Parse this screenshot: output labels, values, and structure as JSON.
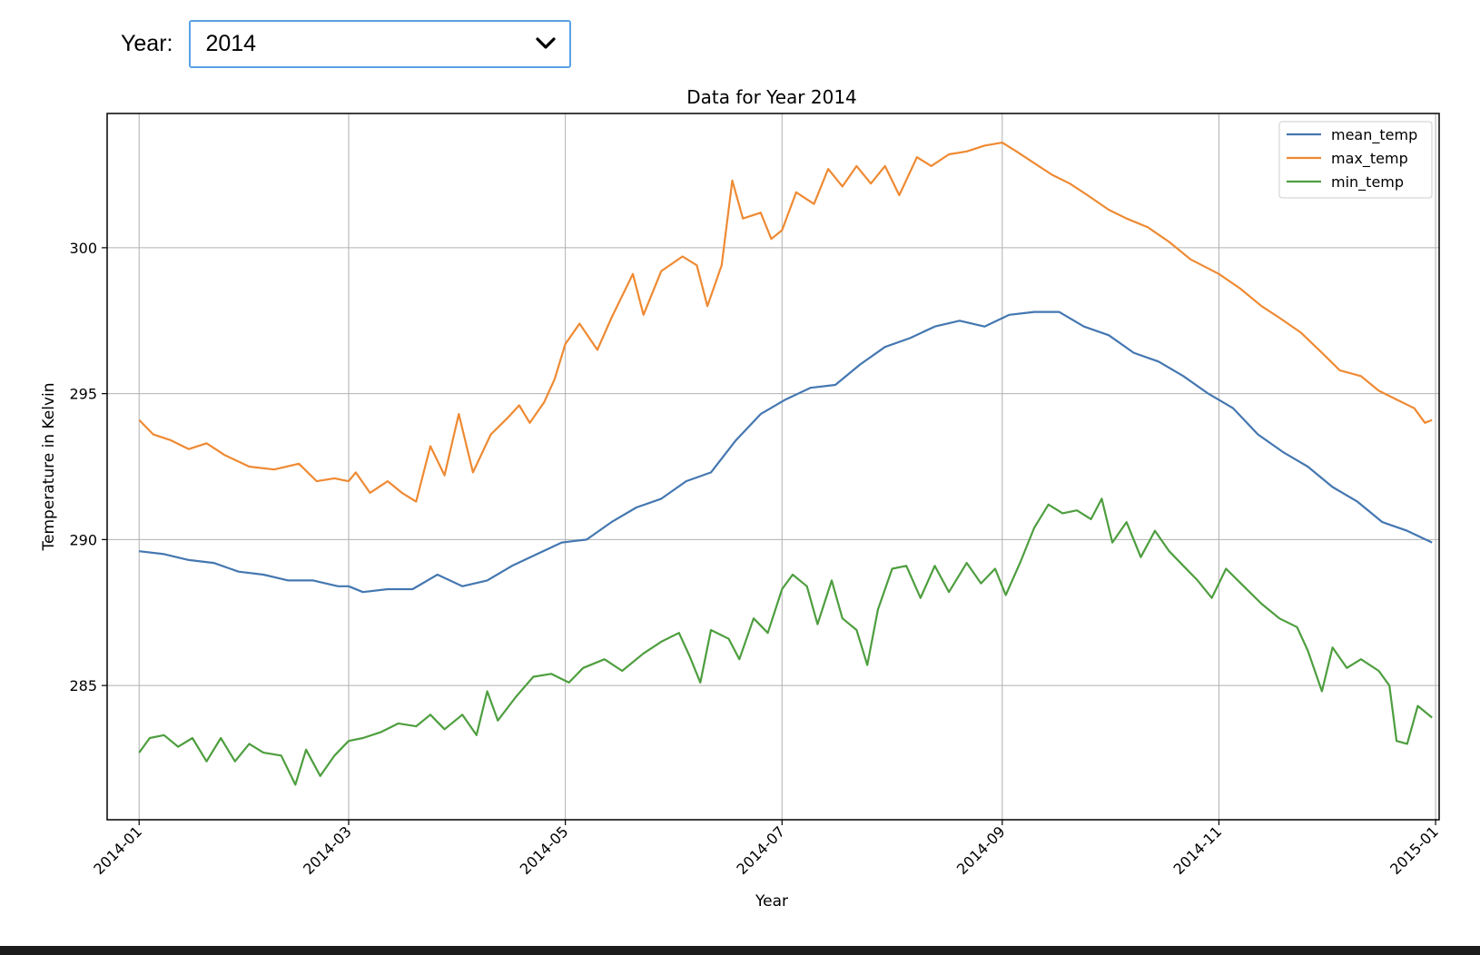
{
  "controls": {
    "year_label": "Year:",
    "year_selected": "2014"
  },
  "chart_data": {
    "type": "line",
    "title": "Data for Year 2014",
    "xlabel": "Year",
    "ylabel": "Temperature in Kelvin",
    "x_range": [
      "2013-12-23",
      "2015-01-02"
    ],
    "ylim": [
      280.4,
      304.6
    ],
    "x_ticks": [
      "2014-01",
      "2014-03",
      "2014-05",
      "2014-07",
      "2014-09",
      "2014-11",
      "2015-01"
    ],
    "y_ticks": [
      285,
      290,
      295,
      300
    ],
    "grid": true,
    "legend_position": "top-right",
    "series": [
      {
        "name": "mean_temp",
        "color": "#4477b0",
        "points": [
          [
            "2014-01-01",
            289.6
          ],
          [
            "2014-01-08",
            289.5
          ],
          [
            "2014-01-15",
            289.3
          ],
          [
            "2014-01-22",
            289.2
          ],
          [
            "2014-01-29",
            288.9
          ],
          [
            "2014-02-05",
            288.8
          ],
          [
            "2014-02-12",
            288.6
          ],
          [
            "2014-02-19",
            288.6
          ],
          [
            "2014-02-26",
            288.4
          ],
          [
            "2014-03-01",
            288.4
          ],
          [
            "2014-03-05",
            288.2
          ],
          [
            "2014-03-12",
            288.3
          ],
          [
            "2014-03-19",
            288.3
          ],
          [
            "2014-03-26",
            288.8
          ],
          [
            "2014-04-02",
            288.4
          ],
          [
            "2014-04-09",
            288.6
          ],
          [
            "2014-04-16",
            289.1
          ],
          [
            "2014-04-23",
            289.5
          ],
          [
            "2014-04-30",
            289.9
          ],
          [
            "2014-05-07",
            290.0
          ],
          [
            "2014-05-14",
            290.6
          ],
          [
            "2014-05-21",
            291.1
          ],
          [
            "2014-05-28",
            291.4
          ],
          [
            "2014-06-04",
            292.0
          ],
          [
            "2014-06-11",
            292.3
          ],
          [
            "2014-06-18",
            293.4
          ],
          [
            "2014-06-25",
            294.3
          ],
          [
            "2014-07-02",
            294.8
          ],
          [
            "2014-07-09",
            295.2
          ],
          [
            "2014-07-16",
            295.3
          ],
          [
            "2014-07-23",
            296.0
          ],
          [
            "2014-07-30",
            296.6
          ],
          [
            "2014-08-06",
            296.9
          ],
          [
            "2014-08-13",
            297.3
          ],
          [
            "2014-08-20",
            297.5
          ],
          [
            "2014-08-27",
            297.3
          ],
          [
            "2014-09-03",
            297.7
          ],
          [
            "2014-09-10",
            297.8
          ],
          [
            "2014-09-17",
            297.8
          ],
          [
            "2014-09-24",
            297.3
          ],
          [
            "2014-10-01",
            297.0
          ],
          [
            "2014-10-08",
            296.4
          ],
          [
            "2014-10-15",
            296.1
          ],
          [
            "2014-10-22",
            295.6
          ],
          [
            "2014-10-29",
            295.0
          ],
          [
            "2014-11-05",
            294.5
          ],
          [
            "2014-11-12",
            293.6
          ],
          [
            "2014-11-19",
            293.0
          ],
          [
            "2014-11-26",
            292.5
          ],
          [
            "2014-12-03",
            291.8
          ],
          [
            "2014-12-10",
            291.3
          ],
          [
            "2014-12-17",
            290.6
          ],
          [
            "2014-12-24",
            290.3
          ],
          [
            "2014-12-31",
            289.9
          ]
        ]
      },
      {
        "name": "max_temp",
        "color": "#ee8a33",
        "points": [
          [
            "2014-01-01",
            294.1
          ],
          [
            "2014-01-05",
            293.6
          ],
          [
            "2014-01-10",
            293.4
          ],
          [
            "2014-01-15",
            293.1
          ],
          [
            "2014-01-20",
            293.3
          ],
          [
            "2014-01-25",
            292.9
          ],
          [
            "2014-02-01",
            292.5
          ],
          [
            "2014-02-08",
            292.4
          ],
          [
            "2014-02-15",
            292.6
          ],
          [
            "2014-02-20",
            292.0
          ],
          [
            "2014-02-25",
            292.1
          ],
          [
            "2014-03-01",
            292.0
          ],
          [
            "2014-03-03",
            292.3
          ],
          [
            "2014-03-07",
            291.6
          ],
          [
            "2014-03-12",
            292.0
          ],
          [
            "2014-03-16",
            291.6
          ],
          [
            "2014-03-20",
            291.3
          ],
          [
            "2014-03-24",
            293.2
          ],
          [
            "2014-03-28",
            292.2
          ],
          [
            "2014-04-01",
            294.3
          ],
          [
            "2014-04-05",
            292.3
          ],
          [
            "2014-04-10",
            293.6
          ],
          [
            "2014-04-15",
            294.2
          ],
          [
            "2014-04-18",
            294.6
          ],
          [
            "2014-04-21",
            294.0
          ],
          [
            "2014-04-25",
            294.7
          ],
          [
            "2014-04-28",
            295.5
          ],
          [
            "2014-05-01",
            296.7
          ],
          [
            "2014-05-05",
            297.4
          ],
          [
            "2014-05-10",
            296.5
          ],
          [
            "2014-05-14",
            297.6
          ],
          [
            "2014-05-20",
            299.1
          ],
          [
            "2014-05-23",
            297.7
          ],
          [
            "2014-05-28",
            299.2
          ],
          [
            "2014-06-03",
            299.7
          ],
          [
            "2014-06-07",
            299.4
          ],
          [
            "2014-06-10",
            298.0
          ],
          [
            "2014-06-14",
            299.4
          ],
          [
            "2014-06-17",
            302.3
          ],
          [
            "2014-06-20",
            301.0
          ],
          [
            "2014-06-25",
            301.2
          ],
          [
            "2014-06-28",
            300.3
          ],
          [
            "2014-07-01",
            300.6
          ],
          [
            "2014-07-05",
            301.9
          ],
          [
            "2014-07-10",
            301.5
          ],
          [
            "2014-07-14",
            302.7
          ],
          [
            "2014-07-18",
            302.1
          ],
          [
            "2014-07-22",
            302.8
          ],
          [
            "2014-07-26",
            302.2
          ],
          [
            "2014-07-30",
            302.8
          ],
          [
            "2014-08-03",
            301.8
          ],
          [
            "2014-08-08",
            303.1
          ],
          [
            "2014-08-12",
            302.8
          ],
          [
            "2014-08-17",
            303.2
          ],
          [
            "2014-08-22",
            303.3
          ],
          [
            "2014-08-27",
            303.5
          ],
          [
            "2014-09-01",
            303.6
          ],
          [
            "2014-09-05",
            303.3
          ],
          [
            "2014-09-10",
            302.9
          ],
          [
            "2014-09-15",
            302.5
          ],
          [
            "2014-09-20",
            302.2
          ],
          [
            "2014-09-25",
            301.8
          ],
          [
            "2014-10-01",
            301.3
          ],
          [
            "2014-10-06",
            301.0
          ],
          [
            "2014-10-12",
            300.7
          ],
          [
            "2014-10-18",
            300.2
          ],
          [
            "2014-10-24",
            299.6
          ],
          [
            "2014-11-01",
            299.1
          ],
          [
            "2014-11-07",
            298.6
          ],
          [
            "2014-11-13",
            298.0
          ],
          [
            "2014-11-18",
            297.6
          ],
          [
            "2014-11-24",
            297.1
          ],
          [
            "2014-11-30",
            296.4
          ],
          [
            "2014-12-05",
            295.8
          ],
          [
            "2014-12-11",
            295.6
          ],
          [
            "2014-12-16",
            295.1
          ],
          [
            "2014-12-21",
            294.8
          ],
          [
            "2014-12-26",
            294.5
          ],
          [
            "2014-12-29",
            294.0
          ],
          [
            "2014-12-31",
            294.1
          ]
        ]
      },
      {
        "name": "min_temp",
        "color": "#4e9e3f",
        "points": [
          [
            "2014-01-01",
            282.7
          ],
          [
            "2014-01-04",
            283.2
          ],
          [
            "2014-01-08",
            283.3
          ],
          [
            "2014-01-12",
            282.9
          ],
          [
            "2014-01-16",
            283.2
          ],
          [
            "2014-01-20",
            282.4
          ],
          [
            "2014-01-24",
            283.2
          ],
          [
            "2014-01-28",
            282.4
          ],
          [
            "2014-02-01",
            283.0
          ],
          [
            "2014-02-05",
            282.7
          ],
          [
            "2014-02-10",
            282.6
          ],
          [
            "2014-02-14",
            281.6
          ],
          [
            "2014-02-17",
            282.8
          ],
          [
            "2014-02-21",
            281.9
          ],
          [
            "2014-02-25",
            282.6
          ],
          [
            "2014-03-01",
            283.1
          ],
          [
            "2014-03-05",
            283.2
          ],
          [
            "2014-03-10",
            283.4
          ],
          [
            "2014-03-15",
            283.7
          ],
          [
            "2014-03-20",
            283.6
          ],
          [
            "2014-03-24",
            284.0
          ],
          [
            "2014-03-28",
            283.5
          ],
          [
            "2014-04-02",
            284.0
          ],
          [
            "2014-04-06",
            283.3
          ],
          [
            "2014-04-09",
            284.8
          ],
          [
            "2014-04-12",
            283.8
          ],
          [
            "2014-04-17",
            284.6
          ],
          [
            "2014-04-22",
            285.3
          ],
          [
            "2014-04-27",
            285.4
          ],
          [
            "2014-05-02",
            285.1
          ],
          [
            "2014-05-06",
            285.6
          ],
          [
            "2014-05-12",
            285.9
          ],
          [
            "2014-05-17",
            285.5
          ],
          [
            "2014-05-23",
            286.1
          ],
          [
            "2014-05-28",
            286.5
          ],
          [
            "2014-06-02",
            286.8
          ],
          [
            "2014-06-05",
            286.0
          ],
          [
            "2014-06-08",
            285.1
          ],
          [
            "2014-06-11",
            286.9
          ],
          [
            "2014-06-16",
            286.6
          ],
          [
            "2014-06-19",
            285.9
          ],
          [
            "2014-06-23",
            287.3
          ],
          [
            "2014-06-27",
            286.8
          ],
          [
            "2014-07-01",
            288.3
          ],
          [
            "2014-07-04",
            288.8
          ],
          [
            "2014-07-08",
            288.4
          ],
          [
            "2014-07-11",
            287.1
          ],
          [
            "2014-07-15",
            288.6
          ],
          [
            "2014-07-18",
            287.3
          ],
          [
            "2014-07-22",
            286.9
          ],
          [
            "2014-07-25",
            285.7
          ],
          [
            "2014-07-28",
            287.6
          ],
          [
            "2014-08-01",
            289.0
          ],
          [
            "2014-08-05",
            289.1
          ],
          [
            "2014-08-09",
            288.0
          ],
          [
            "2014-08-13",
            289.1
          ],
          [
            "2014-08-17",
            288.2
          ],
          [
            "2014-08-22",
            289.2
          ],
          [
            "2014-08-26",
            288.5
          ],
          [
            "2014-08-30",
            289.0
          ],
          [
            "2014-09-02",
            288.1
          ],
          [
            "2014-09-06",
            289.2
          ],
          [
            "2014-09-10",
            290.4
          ],
          [
            "2014-09-14",
            291.2
          ],
          [
            "2014-09-18",
            290.9
          ],
          [
            "2014-09-22",
            291.0
          ],
          [
            "2014-09-26",
            290.7
          ],
          [
            "2014-09-29",
            291.4
          ],
          [
            "2014-10-02",
            289.9
          ],
          [
            "2014-10-06",
            290.6
          ],
          [
            "2014-10-10",
            289.4
          ],
          [
            "2014-10-14",
            290.3
          ],
          [
            "2014-10-18",
            289.6
          ],
          [
            "2014-10-22",
            289.1
          ],
          [
            "2014-10-26",
            288.6
          ],
          [
            "2014-10-30",
            288.0
          ],
          [
            "2014-11-03",
            289.0
          ],
          [
            "2014-11-08",
            288.4
          ],
          [
            "2014-11-13",
            287.8
          ],
          [
            "2014-11-18",
            287.3
          ],
          [
            "2014-11-23",
            287.0
          ],
          [
            "2014-11-26",
            286.2
          ],
          [
            "2014-11-30",
            284.8
          ],
          [
            "2014-12-03",
            286.3
          ],
          [
            "2014-12-07",
            285.6
          ],
          [
            "2014-12-11",
            285.9
          ],
          [
            "2014-12-16",
            285.5
          ],
          [
            "2014-12-19",
            285.0
          ],
          [
            "2014-12-21",
            283.1
          ],
          [
            "2014-12-24",
            283.0
          ],
          [
            "2014-12-27",
            284.3
          ],
          [
            "2014-12-31",
            283.9
          ]
        ]
      }
    ]
  }
}
